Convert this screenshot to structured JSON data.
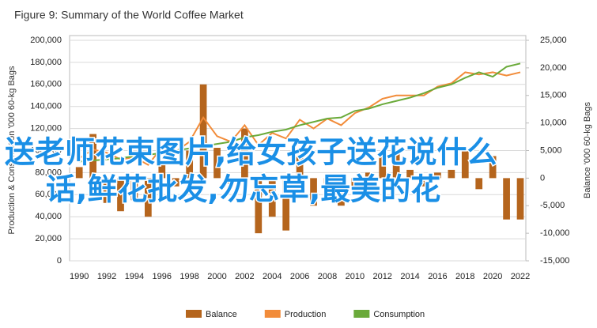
{
  "chart_data": {
    "type": "bar",
    "title": "Figure 9: Summary of the World Coffee Market",
    "ylabel": "Production & Consumption '000 60-kg Bags",
    "y2label": "Balance '000 60-kg Bags",
    "x": [
      1990,
      1991,
      1992,
      1993,
      1994,
      1995,
      1996,
      1997,
      1998,
      1999,
      2000,
      2001,
      2002,
      2003,
      2004,
      2005,
      2006,
      2007,
      2008,
      2009,
      2010,
      2011,
      2012,
      2013,
      2014,
      2015,
      2016,
      2017,
      2018,
      2019,
      2020,
      2021,
      2022
    ],
    "xlim": [
      1989.3,
      2022.4
    ],
    "xticks": [
      1990,
      1992,
      1994,
      1996,
      1998,
      2000,
      2002,
      2004,
      2006,
      2008,
      2010,
      2012,
      2014,
      2016,
      2018,
      2020,
      2022
    ],
    "ylim": [
      0,
      200000
    ],
    "yticks": [
      0,
      {
        "value": 20000,
        "label": "20,000"
      },
      {
        "value": 40000,
        "label": "40,000"
      },
      {
        "value": 60000,
        "label": "60,000"
      },
      {
        "value": 80000,
        "label": "80,000"
      },
      {
        "value": 100000,
        "label": "100,000"
      },
      {
        "value": 120000,
        "label": "120,000"
      },
      {
        "value": 140000,
        "label": "140,000"
      },
      {
        "value": 160000,
        "label": "160,000"
      },
      {
        "value": 180000,
        "label": "180,000"
      },
      {
        "value": 200000,
        "label": "200,000"
      }
    ],
    "y2lim": [
      -15000,
      25000
    ],
    "y2ticks": [
      {
        "value": -15000,
        "label": "-15,000"
      },
      {
        "value": -10000,
        "label": "-10,000"
      },
      {
        "value": -5000,
        "label": "-5,000"
      },
      0,
      {
        "value": 5000,
        "label": "5,000"
      },
      {
        "value": 10000,
        "label": "10,000"
      },
      {
        "value": 15000,
        "label": "15,000"
      },
      {
        "value": 20000,
        "label": "20,000"
      },
      {
        "value": 25000,
        "label": "25,000"
      }
    ],
    "grid": true,
    "legend": "bottom",
    "series": [
      {
        "name": "Balance",
        "type": "bar",
        "axis": "y2",
        "color": "#b5651d",
        "values": [
          2000,
          8000,
          -4500,
          -6000,
          -4000,
          -7000,
          3000,
          -1500,
          5000,
          17000,
          5500,
          -1000,
          9000,
          -10000,
          -7000,
          -9500,
          4000,
          -5000,
          -1000,
          -5000,
          -2000,
          1000,
          4500,
          5000,
          1500,
          -1500,
          1000,
          1500,
          5000,
          -2000,
          4000,
          -7500,
          -7500
        ]
      },
      {
        "name": "Production",
        "type": "line",
        "color": "#f28c3a",
        "values": [
          93000,
          101000,
          98000,
          92000,
          94000,
          87000,
          103000,
          99000,
          108000,
          130000,
          113000,
          108000,
          123000,
          105000,
          116000,
          111000,
          128000,
          120000,
          129000,
          123000,
          134000,
          139000,
          147000,
          150000,
          150000,
          150000,
          158000,
          161000,
          171000,
          169000,
          171000,
          168000,
          171000
        ]
      },
      {
        "name": "Consumption",
        "type": "line",
        "color": "#6aaa3a",
        "values": [
          90000,
          91000,
          92000,
          93000,
          95000,
          96000,
          98000,
          100000,
          102000,
          104000,
          106000,
          108000,
          112000,
          114000,
          117000,
          119000,
          123000,
          126000,
          129000,
          130000,
          136000,
          138000,
          142000,
          145000,
          148000,
          152000,
          157000,
          160000,
          166000,
          171000,
          167000,
          176000,
          179000
        ]
      }
    ]
  },
  "watermark": [
    "送老师花束图片,给女孩子送花说什么",
    "话,鲜花批发,勿忘草,最美的花"
  ]
}
